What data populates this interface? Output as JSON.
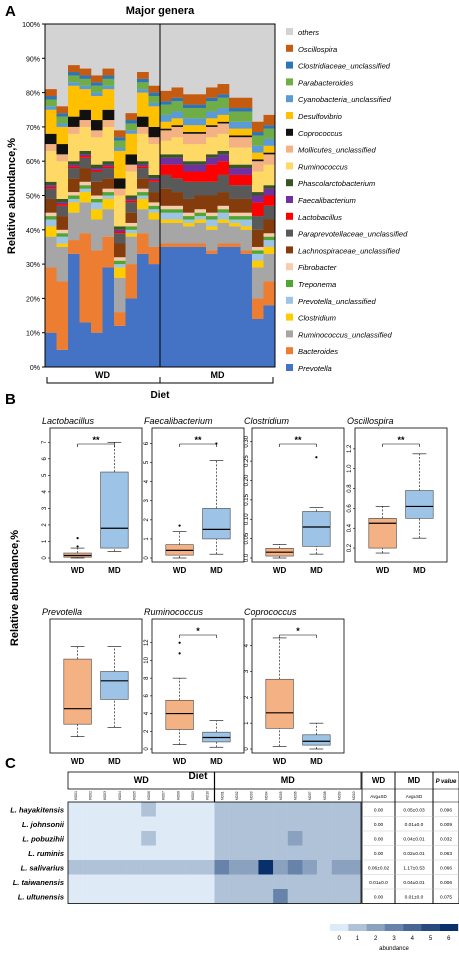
{
  "panels": {
    "a": "A",
    "b": "B",
    "c": "C"
  },
  "colors": {
    "others": "#d3d3d3",
    "Oscillospira": "#c55a11",
    "Clostridiaceae_unclassified": "#2e75b6",
    "Parabacteroides": "#70ad47",
    "Cyanobacteria_unclassified": "#5b9bd5",
    "Desulfovibrio": "#ffc000",
    "Coprococcus": "#111111",
    "Mollicutes_unclassified": "#f4b183",
    "Ruminococcus": "#ffd966",
    "Phascolarctobacterium": "#375623",
    "Faecalibacterium": "#7030a0",
    "Lactobacillus": "#ff0000",
    "Paraprevotellaceae_unclassified": "#595959",
    "Lachnospiraceae_unclassified": "#843c0c",
    "Fibrobacter": "#f8cbad",
    "Treponema": "#4ea72e",
    "Prevotella_unclassified": "#9dc3e6",
    "Clostridium": "#ffcc00",
    "Ruminococcus_unclassified": "#a6a6a6",
    "Bacteroides": "#ed7d31",
    "Prevotella": "#4472c4",
    "box_wd": "#f4b183",
    "box_md": "#9dc3e6",
    "heat0": "#deebf7",
    "heat6": "#08306b"
  },
  "chart_data": [
    {
      "type": "bar",
      "stacked": true,
      "title": "Major genera",
      "xlabel": "Diet",
      "ylabel": "Relative abundance,%",
      "ylim": [
        0,
        100
      ],
      "yticks": [
        "0%",
        "10%",
        "20%",
        "30%",
        "40%",
        "50%",
        "60%",
        "70%",
        "80%",
        "90%",
        "100%"
      ],
      "group_labels": [
        "WD",
        "MD"
      ],
      "samples_per_group": [
        10,
        10
      ],
      "legend": [
        "others",
        "Oscillospira",
        "Clostridiaceae_unclassified",
        "Parabacteroides",
        "Cyanobacteria_unclassified",
        "Desulfovibrio",
        "Coprococcus",
        "Mollicutes_unclassified",
        "Ruminococcus",
        "Phascolarctobacterium",
        "Faecalibacterium",
        "Lactobacillus",
        "Paraprevotellaceae_unclassified",
        "Lachnospiraceae_unclassified",
        "Fibrobacter",
        "Treponema",
        "Prevotella_unclassified",
        "Clostridium",
        "Ruminococcus_unclassified",
        "Bacteroides",
        "Prevotella"
      ],
      "legend_position": "right",
      "series": [
        {
          "name": "Prevotella",
          "values": [
            10,
            5,
            33,
            13,
            10,
            29,
            12,
            20,
            33,
            30,
            35,
            35,
            35,
            35,
            33,
            35,
            35,
            33,
            14,
            18
          ]
        },
        {
          "name": "Bacteroides",
          "values": [
            19,
            20,
            4,
            26,
            24,
            9,
            4,
            10,
            6,
            5,
            1,
            1,
            1,
            1,
            1,
            1,
            1,
            1,
            6,
            7
          ]
        },
        {
          "name": "Ruminococcus_unclassified",
          "values": [
            9,
            10,
            8,
            9,
            9,
            8,
            10,
            8,
            7,
            8,
            6,
            6,
            5,
            6,
            6,
            6,
            5,
            6,
            9,
            8
          ]
        },
        {
          "name": "Clostridium",
          "values": [
            3,
            1,
            3,
            3,
            3,
            3,
            3,
            1,
            3,
            2,
            1,
            1,
            1,
            1,
            1,
            1,
            1,
            1,
            2,
            2
          ]
        },
        {
          "name": "Prevotella_unclassified",
          "values": [
            2,
            2,
            1,
            1,
            2,
            1,
            1,
            1,
            1,
            1,
            2,
            2,
            1,
            1,
            2,
            2,
            1,
            2,
            2,
            2
          ]
        },
        {
          "name": "Treponema",
          "values": [
            1,
            1,
            1,
            1,
            1,
            1,
            1,
            1,
            1,
            1,
            1,
            1,
            1,
            1,
            1,
            1,
            1,
            1,
            1,
            1
          ]
        },
        {
          "name": "Fibrobacter",
          "values": [
            1,
            1,
            1,
            1,
            1,
            1,
            1,
            1,
            1,
            1,
            1,
            1,
            1,
            1,
            1,
            1,
            1,
            1,
            1,
            1
          ]
        },
        {
          "name": "Lachnospiraceae_unclassified",
          "values": [
            4,
            4,
            4,
            4,
            4,
            3,
            4,
            3,
            3,
            3,
            5,
            4,
            4,
            4,
            5,
            4,
            4,
            4,
            5,
            4
          ]
        },
        {
          "name": "Paraprevotellaceae_unclassified",
          "values": [
            3,
            3,
            3,
            3,
            3,
            3,
            3,
            3,
            3,
            3,
            4,
            4,
            5,
            4,
            4,
            5,
            4,
            4,
            4,
            4
          ]
        },
        {
          "name": "Lactobacillus",
          "values": [
            0.5,
            0.5,
            0.5,
            0.5,
            0.5,
            0.5,
            0.5,
            0.5,
            0.5,
            0.5,
            3,
            4,
            3,
            3,
            5,
            4,
            3,
            3,
            4,
            3
          ]
        },
        {
          "name": "Faecalibacterium",
          "values": [
            0.5,
            0.5,
            0.5,
            0.5,
            0.5,
            0.5,
            0.5,
            0.5,
            0.5,
            0.5,
            2,
            2,
            2,
            2,
            2,
            2,
            2,
            2,
            2,
            2
          ]
        },
        {
          "name": "Phascolarctobacterium",
          "values": [
            1,
            1,
            1,
            1,
            1,
            1,
            1,
            1,
            1,
            1,
            1,
            1,
            1,
            1,
            1,
            1,
            1,
            1,
            1,
            1
          ]
        },
        {
          "name": "Ruminococcus",
          "values": [
            9,
            11,
            8,
            7,
            8,
            10,
            9,
            7,
            8,
            9,
            4,
            5,
            5,
            5,
            5,
            5,
            5,
            5,
            6,
            6
          ]
        },
        {
          "name": "Mollicutes_unclassified",
          "values": [
            2,
            2,
            2,
            2,
            2,
            2,
            2,
            2,
            2,
            2,
            3,
            3,
            3,
            3,
            3,
            3,
            3,
            3,
            3,
            3
          ]
        },
        {
          "name": "Coprococcus",
          "values": [
            3,
            3,
            3,
            3,
            3,
            3,
            3,
            3,
            3,
            3,
            0.5,
            0.5,
            0.5,
            0.5,
            0.5,
            0.5,
            0.5,
            0.5,
            0.5,
            0.5
          ]
        },
        {
          "name": "Desulfovibrio",
          "values": [
            7,
            5,
            9,
            6,
            7,
            6,
            8,
            6,
            7,
            6,
            2,
            2,
            2,
            2,
            2,
            2,
            2,
            2,
            2,
            2
          ]
        },
        {
          "name": "Cyanobacteria_unclassified",
          "values": [
            1,
            1,
            1,
            1,
            1,
            1,
            1,
            1,
            1,
            1,
            2,
            2,
            2,
            2,
            2,
            2,
            2,
            2,
            2,
            2
          ]
        },
        {
          "name": "Parabacteroides",
          "values": [
            2,
            2,
            2,
            2,
            2,
            2,
            2,
            2,
            2,
            2,
            3,
            3,
            3,
            3,
            3,
            3,
            3,
            3,
            3,
            3
          ]
        },
        {
          "name": "Clostridiaceae_unclassified",
          "values": [
            1,
            1,
            1,
            1,
            1,
            1,
            1,
            1,
            1,
            1,
            1,
            1,
            1,
            1,
            1,
            1,
            1,
            1,
            1,
            1
          ]
        },
        {
          "name": "Oscillospira",
          "values": [
            2,
            2,
            2,
            2,
            2,
            2,
            2,
            2,
            2,
            2,
            3,
            3,
            3,
            3,
            3,
            3,
            3,
            3,
            3,
            3
          ]
        }
      ]
    },
    {
      "type": "box",
      "xlabel": "Diet",
      "ylabel": "Relative abundance,%",
      "categories": [
        "WD",
        "MD"
      ],
      "plots": [
        {
          "title": "Lactobacillus",
          "yticks": [
            "0",
            "1",
            "2",
            "3",
            "4",
            "5",
            "6",
            "7"
          ],
          "ylim": [
            0,
            7.5
          ],
          "significance": "**",
          "boxes": [
            [
              0,
              0.05,
              0.15,
              0.3,
              0.6
            ],
            [
              0.4,
              0.6,
              1.8,
              5.2,
              7
            ]
          ],
          "outliers": [
            [
              0.7,
              1.2
            ],
            []
          ]
        },
        {
          "title": "Faecalibacterium",
          "yticks": [
            "0",
            "1",
            "2",
            "3",
            "4",
            "5",
            "6"
          ],
          "ylim": [
            0,
            6.5
          ],
          "significance": "**",
          "boxes": [
            [
              0,
              0.15,
              0.4,
              0.7,
              1.4
            ],
            [
              0.2,
              1,
              1.5,
              2.6,
              5.1
            ]
          ],
          "outliers": [
            [
              1.7
            ],
            [
              6
            ]
          ]
        },
        {
          "title": "Clostridium",
          "yticks": [
            "0.0",
            "0.05",
            "0.10",
            "0.15",
            "0.20",
            "0.25",
            "0.30"
          ],
          "ylim": [
            0,
            0.32
          ],
          "significance": "**",
          "boxes": [
            [
              0,
              0.005,
              0.015,
              0.025,
              0.035
            ],
            [
              0.01,
              0.03,
              0.08,
              0.12,
              0.13
            ]
          ],
          "outliers": [
            [],
            [
              0.26
            ]
          ]
        },
        {
          "title": "Oscillospira",
          "yticks": [
            "0.2",
            "0.4",
            "0.6",
            "0.8",
            "1.0",
            "1.2"
          ],
          "ylim": [
            0.1,
            1.35
          ],
          "significance": "**",
          "boxes": [
            [
              0.15,
              0.2,
              0.45,
              0.5,
              0.62
            ],
            [
              0.3,
              0.5,
              0.62,
              0.78,
              1.15
            ]
          ],
          "outliers": [
            [],
            []
          ]
        },
        {
          "title": "Prevotella",
          "yticks": [],
          "ylim": [
            0,
            40
          ],
          "significance": "",
          "boxes": [
            [
              4,
              8,
              13,
              29,
              33
            ],
            [
              7,
              16,
              22,
              25,
              33
            ]
          ],
          "outliers": [
            [],
            []
          ]
        },
        {
          "title": "Ruminococcus",
          "yticks": [
            "0",
            "2",
            "4",
            "6",
            "8",
            "10",
            "12"
          ],
          "ylim": [
            0,
            14
          ],
          "significance": "*",
          "boxes": [
            [
              0.5,
              2.2,
              4,
              5.5,
              8
            ],
            [
              0.2,
              0.8,
              1.3,
              1.9,
              3.2
            ]
          ],
          "outliers": [
            [
              10.8,
              12
            ],
            []
          ]
        },
        {
          "title": "Coprococcus",
          "yticks": [
            "0",
            "1",
            "2",
            "3",
            "4"
          ],
          "ylim": [
            0,
            4.8
          ],
          "significance": "*",
          "boxes": [
            [
              0.1,
              0.8,
              1.4,
              2.7,
              4.3
            ],
            [
              0,
              0.15,
              0.3,
              0.55,
              1
            ]
          ],
          "outliers": [
            [],
            []
          ]
        }
      ]
    },
    {
      "type": "heatmap",
      "groups": [
        "WD",
        "MD"
      ],
      "samples": [
        "WD01",
        "WD02",
        "WD03",
        "WD04",
        "WD05",
        "WD06",
        "WD07",
        "WD08",
        "WD09",
        "WD10",
        "MD01",
        "MD02",
        "MD03",
        "MD04",
        "MD05",
        "MD06",
        "MD07",
        "MD08",
        "MD09",
        "MD10"
      ],
      "rows": [
        "L. hayakitensis",
        "L. johnsonii",
        "L. pobuzihii",
        "L. ruminis",
        "L. salivarius",
        "L. taiwanensis",
        "L. ultunensis"
      ],
      "matrix": [
        [
          0,
          0,
          0,
          0,
          0,
          1,
          0,
          0,
          0,
          0,
          1,
          1,
          1,
          1,
          1,
          1,
          1,
          1,
          1,
          1
        ],
        [
          0,
          0,
          0,
          0,
          0,
          0,
          0,
          0,
          0,
          0,
          1,
          1,
          1,
          1,
          1,
          1,
          1,
          1,
          1,
          1
        ],
        [
          0,
          0,
          0,
          0,
          0,
          1,
          0,
          0,
          0,
          0,
          1,
          1,
          1,
          1,
          1,
          2,
          1,
          1,
          1,
          1
        ],
        [
          0,
          0,
          0,
          0,
          0,
          0,
          0,
          0,
          0,
          0,
          1,
          1,
          1,
          1,
          1,
          1,
          1,
          1,
          1,
          1
        ],
        [
          1,
          1,
          1,
          1,
          1,
          1,
          1,
          1,
          1,
          1,
          3,
          2,
          2,
          6,
          2,
          3,
          2,
          1,
          2,
          2
        ],
        [
          0,
          0,
          0,
          0,
          0,
          0,
          0,
          0,
          0,
          0,
          1,
          1,
          1,
          1,
          1,
          1,
          1,
          1,
          1,
          1
        ],
        [
          0,
          0,
          0,
          0,
          0,
          0,
          0,
          0,
          0,
          0,
          1,
          1,
          1,
          1,
          3,
          1,
          1,
          1,
          1,
          1
        ]
      ],
      "stats_headers": [
        "WD",
        "MD",
        "P value"
      ],
      "stats_subheaders": [
        "Avg±SD",
        "Avg±SD",
        ""
      ],
      "stats": [
        [
          "0.00",
          "0.05±0.03",
          "0.096"
        ],
        [
          "0.00",
          "0.01±0.0",
          "0.009"
        ],
        [
          "0.00",
          "0.04±0.01",
          "0.032"
        ],
        [
          "0.00",
          "0.02±0.01",
          "0.063"
        ],
        [
          "0.06±0.02",
          "1.17±0.53",
          "0.066"
        ],
        [
          "0.01±0.0",
          "0.04±0.01",
          "0.006"
        ],
        [
          "0.00",
          "0.01±0.0",
          "0.075"
        ]
      ],
      "colorbar_ticks": [
        "0",
        "1",
        "2",
        "3",
        "4",
        "5",
        "6"
      ],
      "colorbar_label": "abundance"
    }
  ]
}
